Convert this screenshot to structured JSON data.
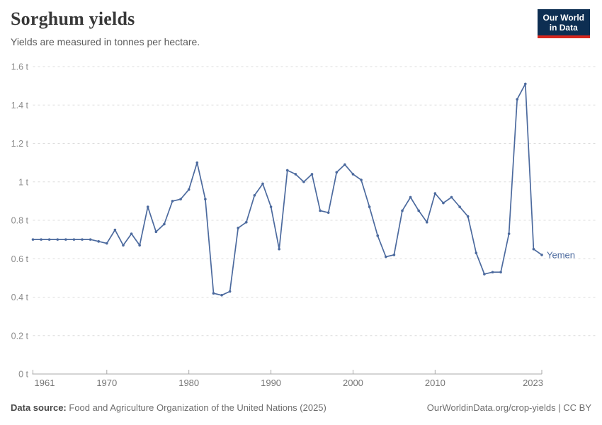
{
  "header": {
    "title": "Sorghum yields",
    "subtitle": "Yields are measured in tonnes per hectare."
  },
  "logo": {
    "line1": "Our World",
    "line2": "in Data"
  },
  "chart_data": {
    "type": "line",
    "title": "Sorghum yields",
    "subtitle": "Yields are measured in tonnes per hectare.",
    "unit": "tonnes per hectare",
    "xlim": [
      1961,
      2023
    ],
    "ylim": [
      0,
      1.6
    ],
    "x_ticks": [
      1961,
      1970,
      1980,
      1990,
      2000,
      2010,
      2023
    ],
    "y_ticks": [
      0,
      0.2,
      0.4,
      0.6,
      0.8,
      1,
      1.2,
      1.4,
      1.6
    ],
    "y_tick_labels": [
      "0 t",
      "0.2 t",
      "0.4 t",
      "0.6 t",
      "0.8 t",
      "1 t",
      "1.2 t",
      "1.4 t",
      "1.6 t"
    ],
    "grid": "horizontal-dashed",
    "legend": "end-of-line-label",
    "line_color": "#4c6a9e",
    "series": [
      {
        "name": "Yemen",
        "color": "#4c6a9e",
        "x": [
          1961,
          1962,
          1963,
          1964,
          1965,
          1966,
          1967,
          1968,
          1969,
          1970,
          1971,
          1972,
          1973,
          1974,
          1975,
          1976,
          1977,
          1978,
          1979,
          1980,
          1981,
          1982,
          1983,
          1984,
          1985,
          1986,
          1987,
          1988,
          1989,
          1990,
          1991,
          1992,
          1993,
          1994,
          1995,
          1996,
          1997,
          1998,
          1999,
          2000,
          2001,
          2002,
          2003,
          2004,
          2005,
          2006,
          2007,
          2008,
          2009,
          2010,
          2011,
          2012,
          2013,
          2014,
          2015,
          2016,
          2017,
          2018,
          2019,
          2020,
          2021,
          2022,
          2023
        ],
        "values": [
          0.7,
          0.7,
          0.7,
          0.7,
          0.7,
          0.7,
          0.7,
          0.7,
          0.69,
          0.68,
          0.75,
          0.67,
          0.73,
          0.67,
          0.87,
          0.74,
          0.78,
          0.9,
          0.91,
          0.96,
          1.1,
          0.91,
          0.42,
          0.41,
          0.43,
          0.76,
          0.79,
          0.93,
          0.99,
          0.87,
          0.65,
          1.06,
          1.04,
          1.0,
          1.04,
          0.85,
          0.84,
          1.05,
          1.09,
          1.04,
          1.01,
          0.87,
          0.72,
          0.61,
          0.62,
          0.85,
          0.92,
          0.85,
          0.79,
          0.94,
          0.89,
          0.92,
          0.87,
          0.82,
          0.63,
          0.52,
          0.53,
          0.53,
          0.73,
          1.43,
          1.51,
          0.65,
          0.62
        ]
      }
    ]
  },
  "footer": {
    "source_label": "Data source:",
    "source_text": "Food and Agriculture Organization of the United Nations (2025)",
    "link": "OurWorldinData.org/crop-yields",
    "separator": "|",
    "license": "CC BY"
  }
}
